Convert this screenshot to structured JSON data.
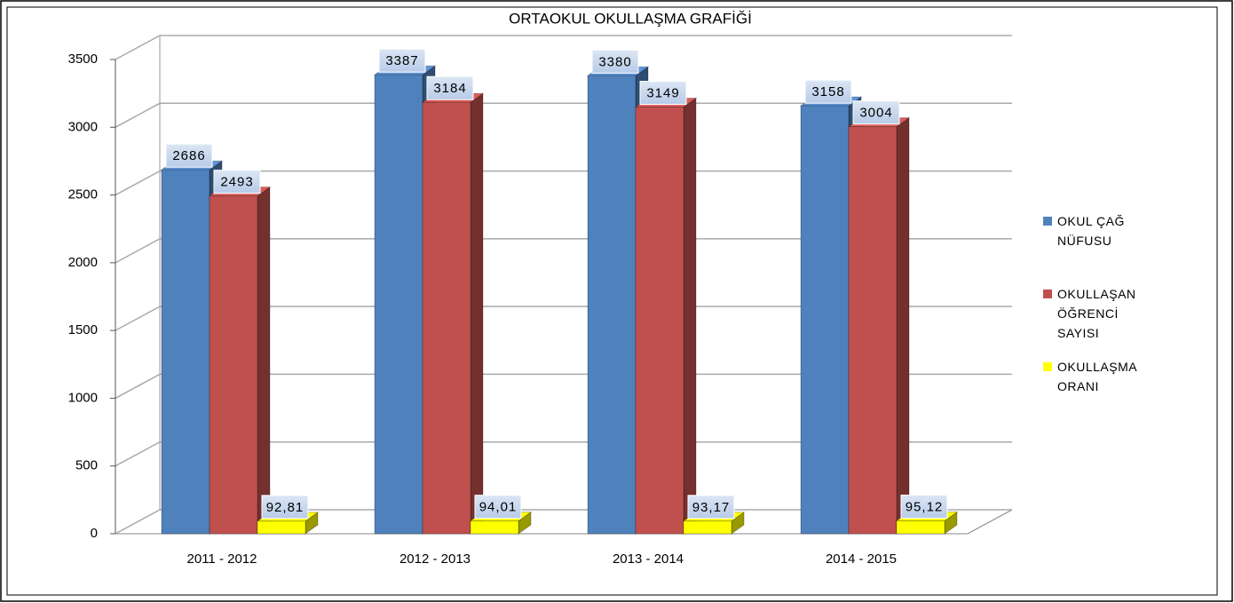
{
  "chart_data": {
    "type": "bar3d",
    "title": "ORTAOKUL OKULLAŞMA GRAFİĞİ",
    "categories": [
      "2011 - 2012",
      "2012 - 2013",
      "2013 - 2014",
      "2014 - 2015"
    ],
    "series": [
      {
        "name": "OKUL ÇAĞ NÜFUSU",
        "color": "#4f81bd",
        "values": [
          2686,
          3387,
          3380,
          3158
        ]
      },
      {
        "name": "OKULLAŞAN ÖĞRENCİ SAYISI",
        "color": "#c0504d",
        "values": [
          2493,
          3184,
          3149,
          3004
        ]
      },
      {
        "name": "OKULLAŞMA ORANI",
        "color": "#ffff00",
        "values": [
          92.81,
          94.01,
          93.17,
          95.12
        ],
        "value_labels": [
          "92,81",
          "94,01",
          "93,17",
          "95,12"
        ]
      }
    ],
    "ylim": [
      0,
      3500
    ],
    "yticks": [
      0,
      500,
      1000,
      1500,
      2000,
      2500,
      3000,
      3500
    ],
    "grid": true,
    "legend": "right"
  }
}
